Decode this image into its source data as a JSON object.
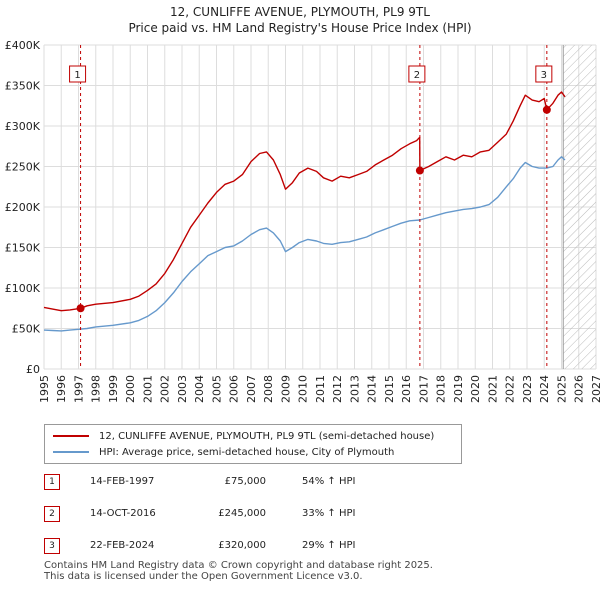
{
  "title_line1": "12, CUNLIFFE AVENUE, PLYMOUTH, PL9 9TL",
  "title_line2": "Price paid vs. HM Land Registry's House Price Index (HPI)",
  "colors": {
    "property": "#c00000",
    "hpi": "#6699cc",
    "grid": "#dddddd",
    "annotation": "#c00000"
  },
  "chart_data": {
    "type": "line",
    "title": "Price paid vs. HM Land Registry's House Price Index (HPI)",
    "xlabel": "",
    "ylabel": "",
    "xlim": [
      1995,
      2027
    ],
    "ylim": [
      0,
      400000
    ],
    "y_ticks": [
      0,
      50000,
      100000,
      150000,
      200000,
      250000,
      300000,
      350000,
      400000
    ],
    "y_tick_labels": [
      "£0",
      "£50K",
      "£100K",
      "£150K",
      "£200K",
      "£250K",
      "£300K",
      "£350K",
      "£400K"
    ],
    "x_ticks": [
      1995,
      1996,
      1997,
      1998,
      1999,
      2000,
      2001,
      2002,
      2003,
      2004,
      2005,
      2006,
      2007,
      2008,
      2009,
      2010,
      2011,
      2012,
      2013,
      2014,
      2015,
      2016,
      2017,
      2018,
      2019,
      2020,
      2021,
      2022,
      2023,
      2024,
      2025,
      2026,
      2027
    ],
    "x_tick_labels": [
      "1995",
      "1996",
      "1997",
      "1998",
      "1999",
      "2000",
      "2001",
      "2002",
      "2003",
      "2004",
      "2005",
      "2006",
      "2007",
      "2008",
      "2009",
      "2010",
      "2011",
      "2012",
      "2013",
      "2014",
      "2015",
      "2016",
      "2017",
      "2018",
      "2019",
      "2020",
      "2021",
      "2022",
      "2023",
      "2024",
      "2025",
      "2026",
      "2027"
    ],
    "hatched_region_start": 2025.1,
    "legend_position": "below",
    "series": [
      {
        "name": "12, CUNLIFFE AVENUE, PLYMOUTH, PL9 9TL (semi-detached house)",
        "color": "#c00000",
        "x": [
          1995,
          1995.5,
          1996,
          1996.5,
          1997.12,
          1997.5,
          1998,
          1999,
          2000,
          2000.5,
          2001,
          2001.5,
          2002,
          2002.5,
          2003,
          2003.5,
          2004,
          2004.5,
          2005,
          2005.5,
          2006,
          2006.5,
          2007,
          2007.5,
          2007.9,
          2008.3,
          2008.7,
          2009.0,
          2009.4,
          2009.8,
          2010.3,
          2010.8,
          2011.2,
          2011.7,
          2012.2,
          2012.7,
          2013.2,
          2013.7,
          2014.2,
          2014.7,
          2015.2,
          2015.7,
          2016.2,
          2016.6,
          2016.78,
          2016.79,
          2017.3,
          2017.8,
          2018.3,
          2018.8,
          2019.3,
          2019.8,
          2020.3,
          2020.8,
          2021.3,
          2021.8,
          2022.2,
          2022.6,
          2022.9,
          2023.3,
          2023.7,
          2024.0,
          2024.15,
          2024.5,
          2024.8,
          2025.0,
          2025.2
        ],
        "values": [
          76000,
          74000,
          72000,
          73000,
          75000,
          78000,
          80000,
          82000,
          86000,
          90000,
          97000,
          105000,
          118000,
          135000,
          155000,
          175000,
          190000,
          205000,
          218000,
          228000,
          232000,
          240000,
          256000,
          266000,
          268000,
          258000,
          240000,
          222000,
          230000,
          242000,
          248000,
          244000,
          236000,
          232000,
          238000,
          236000,
          240000,
          244000,
          252000,
          258000,
          264000,
          272000,
          278000,
          282000,
          286000,
          245000,
          250000,
          256000,
          262000,
          258000,
          264000,
          262000,
          268000,
          270000,
          280000,
          290000,
          306000,
          325000,
          338000,
          332000,
          330000,
          334000,
          320000,
          328000,
          338000,
          342000,
          336000
        ]
      },
      {
        "name": "HPI: Average price, semi-detached house, City of Plymouth",
        "color": "#6699cc",
        "x": [
          1995,
          1995.5,
          1996,
          1996.5,
          1997,
          1997.5,
          1998,
          1999,
          2000,
          2000.5,
          2001,
          2001.5,
          2002,
          2002.5,
          2003,
          2003.5,
          2004,
          2004.5,
          2005,
          2005.5,
          2006,
          2006.5,
          2007,
          2007.5,
          2007.9,
          2008.3,
          2008.7,
          2009.0,
          2009.4,
          2009.8,
          2010.3,
          2010.8,
          2011.2,
          2011.7,
          2012.2,
          2012.7,
          2013.2,
          2013.7,
          2014.2,
          2014.7,
          2015.2,
          2015.7,
          2016.2,
          2016.78,
          2017.3,
          2017.8,
          2018.3,
          2018.8,
          2019.3,
          2019.8,
          2020.3,
          2020.8,
          2021.3,
          2021.8,
          2022.2,
          2022.6,
          2022.9,
          2023.3,
          2023.7,
          2024.15,
          2024.5,
          2024.8,
          2025.0,
          2025.2
        ],
        "values": [
          48000,
          47500,
          47000,
          48000,
          49000,
          50000,
          52000,
          54000,
          57000,
          60000,
          65000,
          72000,
          82000,
          94000,
          108000,
          120000,
          130000,
          140000,
          145000,
          150000,
          152000,
          158000,
          166000,
          172000,
          174000,
          168000,
          158000,
          145000,
          150000,
          156000,
          160000,
          158000,
          155000,
          154000,
          156000,
          157000,
          160000,
          163000,
          168000,
          172000,
          176000,
          180000,
          183000,
          184000,
          187000,
          190000,
          193000,
          195000,
          197000,
          198000,
          200000,
          203000,
          212000,
          225000,
          235000,
          248000,
          255000,
          250000,
          248000,
          248000,
          250000,
          258000,
          262000,
          258000
        ]
      }
    ],
    "markers": [
      {
        "label": "1",
        "x": 1997.12,
        "value": 75000
      },
      {
        "label": "2",
        "x": 2016.79,
        "value": 245000
      },
      {
        "label": "3",
        "x": 2024.15,
        "value": 320000
      }
    ]
  },
  "legend": {
    "property_label": "12, CUNLIFFE AVENUE, PLYMOUTH, PL9 9TL (semi-detached house)",
    "hpi_label": "HPI: Average price, semi-detached house, City of Plymouth"
  },
  "transactions": [
    {
      "num": "1",
      "date": "14-FEB-1997",
      "price": "£75,000",
      "hpi": "54% ↑ HPI"
    },
    {
      "num": "2",
      "date": "14-OCT-2016",
      "price": "£245,000",
      "hpi": "33% ↑ HPI"
    },
    {
      "num": "3",
      "date": "22-FEB-2024",
      "price": "£320,000",
      "hpi": "29% ↑ HPI"
    }
  ],
  "footer_line1": "Contains HM Land Registry data © Crown copyright and database right 2025.",
  "footer_line2": "This data is licensed under the Open Government Licence v3.0."
}
